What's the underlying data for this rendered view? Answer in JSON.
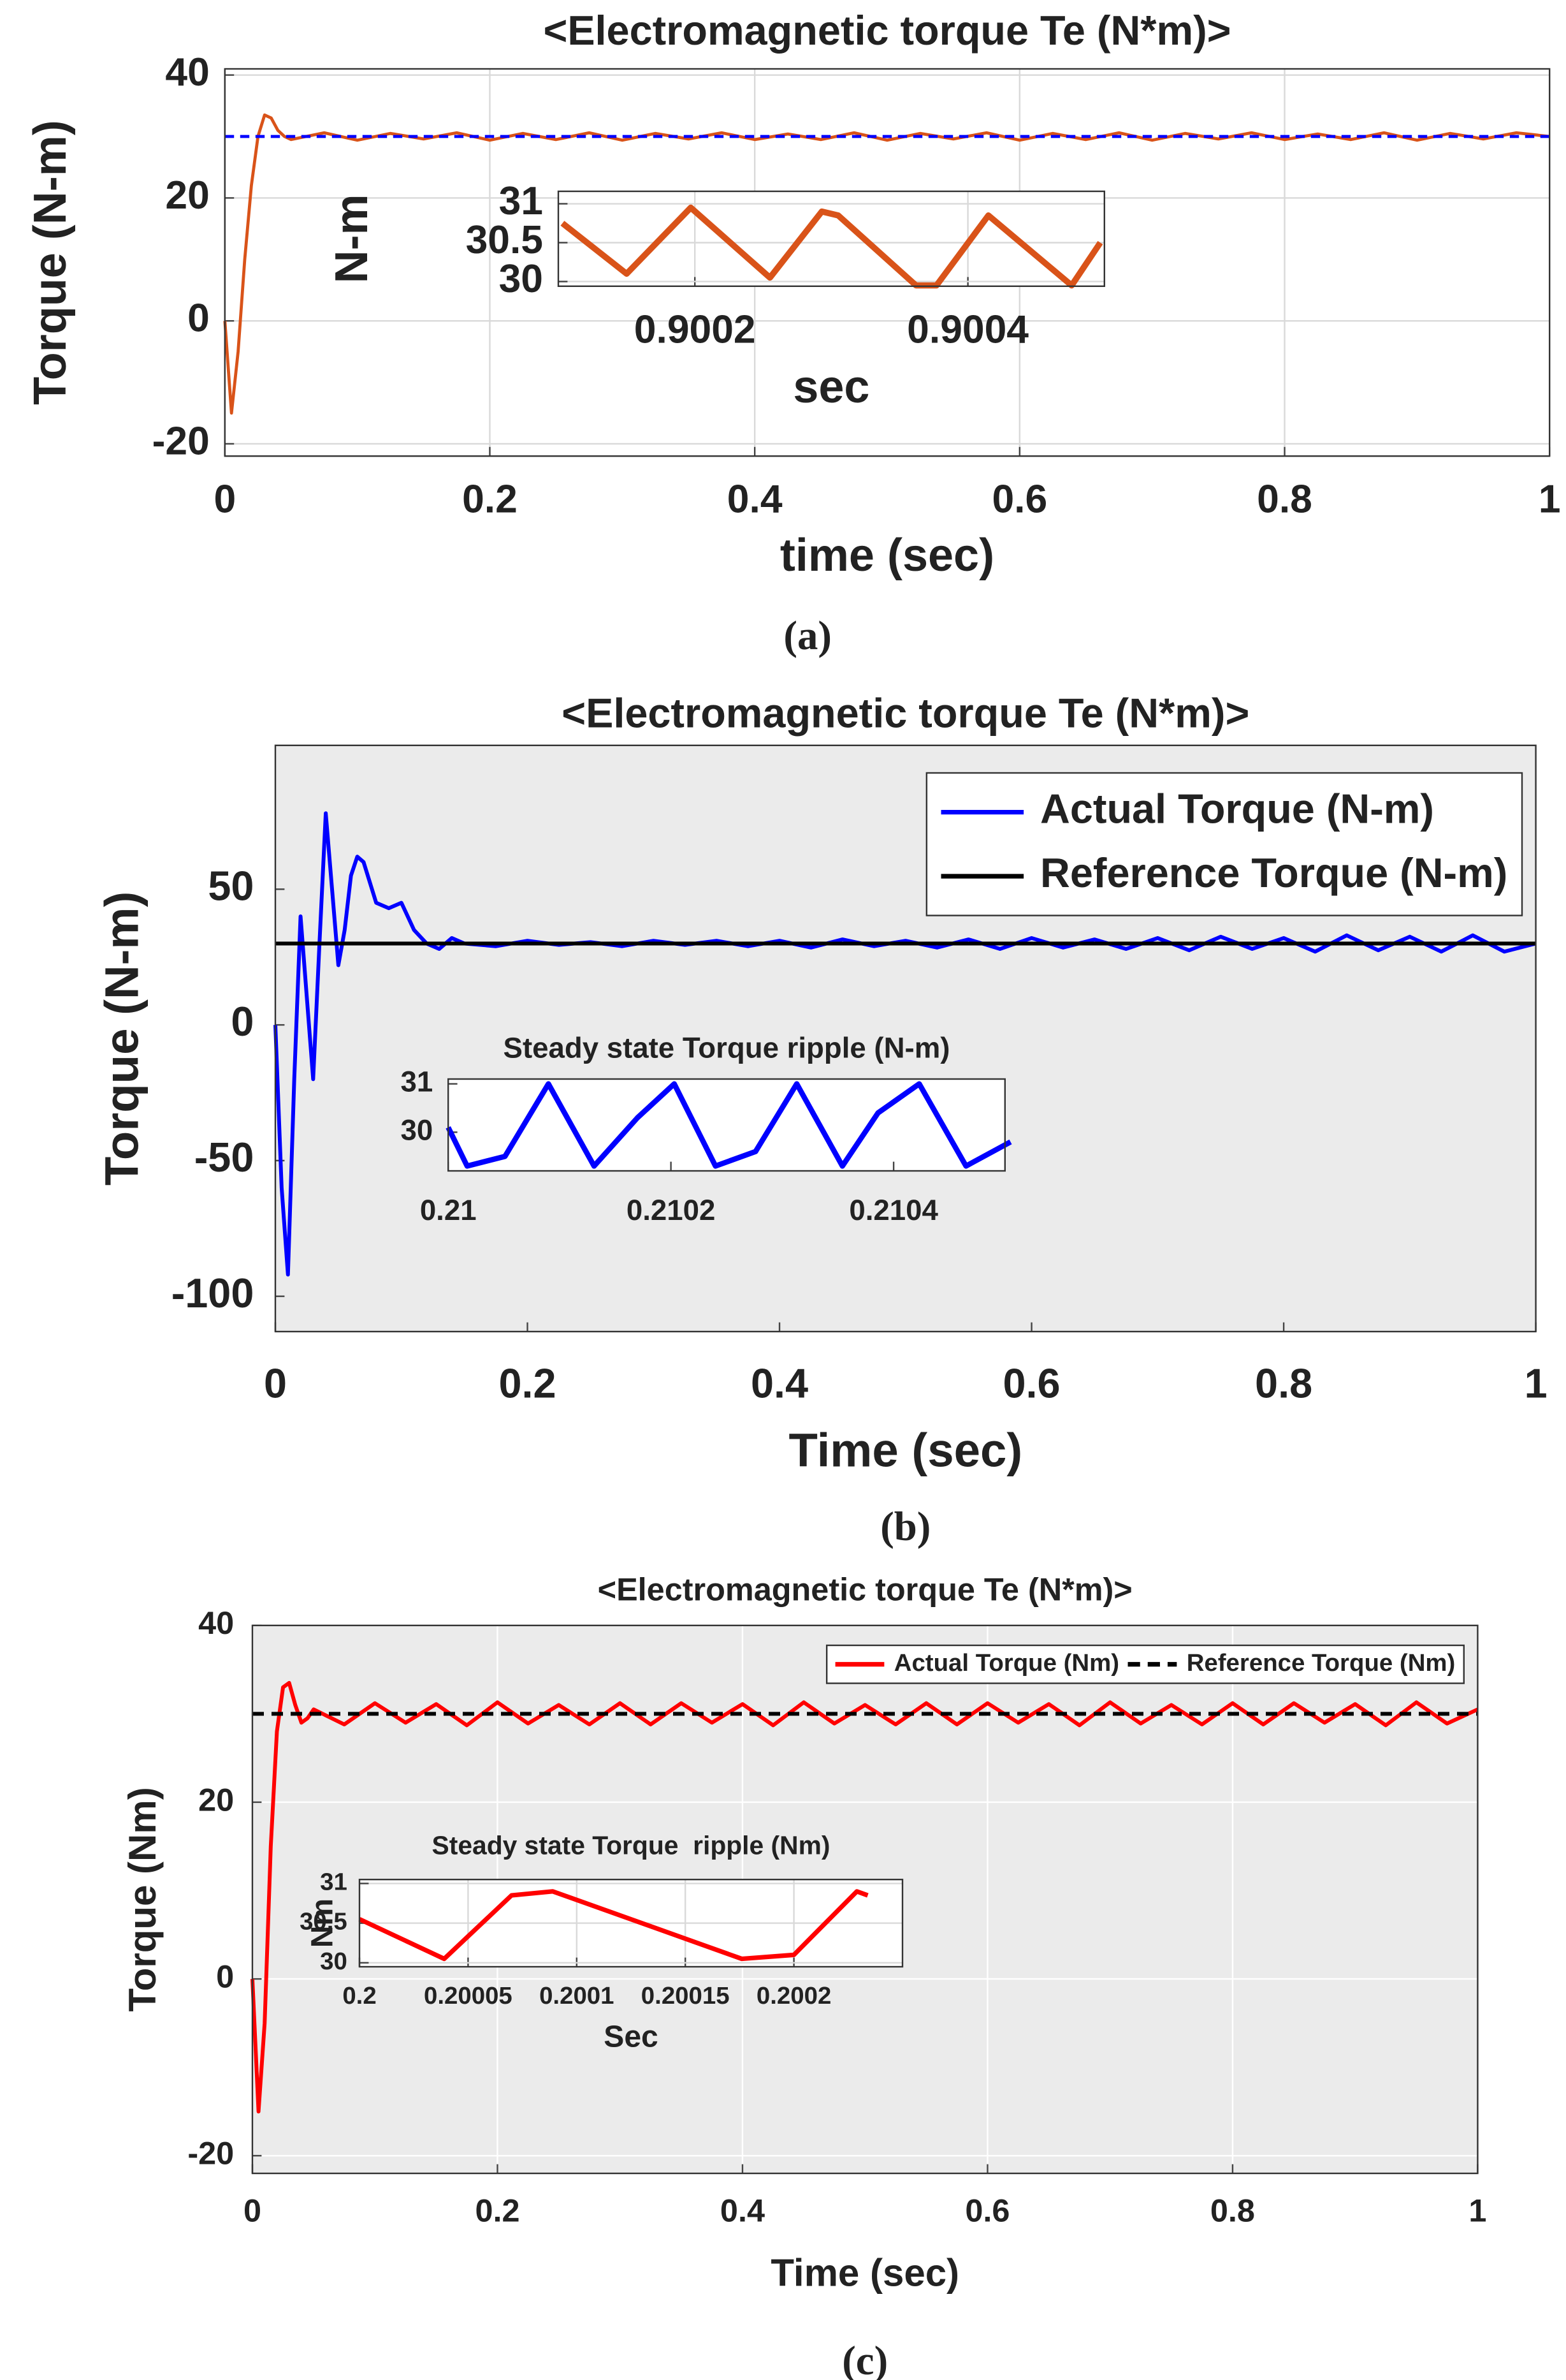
{
  "chart_data": [
    {
      "type": "line",
      "title": "<Electromagnetic torque Te (N*m)>",
      "xlabel": "time (sec)",
      "ylabel": "Torque (N-m)",
      "caption": "(a)",
      "xlim": [
        0,
        1
      ],
      "ylim": [
        -22,
        41
      ],
      "xticks": [
        0,
        0.2,
        0.4,
        0.6,
        0.8,
        1
      ],
      "yticks": [
        -20,
        0,
        20,
        40
      ],
      "grid": true,
      "background": "#ffffff",
      "series": [
        {
          "color": "#d95319",
          "dash": false,
          "x": [
            0,
            0.005,
            0.01,
            0.015,
            0.02,
            0.025,
            0.03,
            0.035,
            0.04,
            0.045,
            0.05,
            0.075,
            0.1,
            0.125,
            0.15,
            0.175,
            0.2,
            0.225,
            0.25,
            0.275,
            0.3,
            0.325,
            0.35,
            0.375,
            0.4,
            0.425,
            0.45,
            0.475,
            0.5,
            0.525,
            0.55,
            0.575,
            0.6,
            0.625,
            0.65,
            0.675,
            0.7,
            0.725,
            0.75,
            0.775,
            0.8,
            0.825,
            0.85,
            0.875,
            0.9,
            0.925,
            0.95,
            0.975,
            1
          ],
          "values": [
            0,
            -15,
            -5,
            10,
            22,
            30,
            33.5,
            33,
            31,
            30,
            29.5,
            30.6,
            29.4,
            30.5,
            29.6,
            30.6,
            29.4,
            30.5,
            29.5,
            30.6,
            29.4,
            30.5,
            29.6,
            30.6,
            29.5,
            30.4,
            29.5,
            30.6,
            29.4,
            30.5,
            29.6,
            30.6,
            29.4,
            30.5,
            29.5,
            30.6,
            29.4,
            30.5,
            29.6,
            30.6,
            29.5,
            30.4,
            29.5,
            30.6,
            29.4,
            30.5,
            29.6,
            30.6,
            30
          ]
        },
        {
          "color": "#0000ff",
          "dash": true,
          "x": [
            0,
            1
          ],
          "values": [
            30,
            30
          ]
        }
      ]
    },
    {
      "type": "line",
      "xlabel": "sec",
      "ylabel": "N-m",
      "xlim": [
        0.9001,
        0.9005
      ],
      "ylim": [
        29.94,
        31.16
      ],
      "xticks": [
        0.9002,
        0.9004
      ],
      "yticks": [
        30,
        30.5,
        31
      ],
      "grid": true,
      "background": "#ffffff",
      "series": [
        {
          "color": "#d95319",
          "dash": false,
          "x": [
            0.900103,
            0.90015,
            0.900197,
            0.900255,
            0.900293,
            0.900305,
            0.900362,
            0.900377,
            0.900415,
            0.900476,
            0.900497
          ],
          "values": [
            30.75,
            30.1,
            30.95,
            30.05,
            30.9,
            30.85,
            29.95,
            29.95,
            30.85,
            29.95,
            30.5
          ]
        }
      ]
    },
    {
      "type": "line",
      "title": "<Electromagnetic torque Te (N*m)>",
      "xlabel": "Time (sec)",
      "ylabel": "Torque (N-m)",
      "caption": "(b)",
      "xlim": [
        0,
        1
      ],
      "ylim": [
        -113,
        103
      ],
      "xticks": [
        0,
        0.2,
        0.4,
        0.6,
        0.8,
        1
      ],
      "yticks": [
        -100,
        -50,
        0,
        50
      ],
      "grid": false,
      "background": "#ebebeb",
      "legend": "top-right",
      "legend_orientation": "vertical",
      "legend_text_color": "#b5500f",
      "series": [
        {
          "name": "Actual Torque (N-m)",
          "color": "#0000ff",
          "dash": false,
          "x": [
            0,
            0.005,
            0.01,
            0.015,
            0.02,
            0.025,
            0.03,
            0.035,
            0.04,
            0.045,
            0.05,
            0.055,
            0.06,
            0.065,
            0.07,
            0.08,
            0.09,
            0.1,
            0.11,
            0.12,
            0.13,
            0.14,
            0.15,
            0.175,
            0.2,
            0.225,
            0.25,
            0.275,
            0.3,
            0.325,
            0.35,
            0.375,
            0.4,
            0.425,
            0.45,
            0.475,
            0.5,
            0.525,
            0.55,
            0.575,
            0.6,
            0.625,
            0.65,
            0.675,
            0.7,
            0.725,
            0.75,
            0.775,
            0.8,
            0.825,
            0.85,
            0.875,
            0.9,
            0.925,
            0.95,
            0.975,
            1
          ],
          "values": [
            0,
            -60,
            -92,
            -20,
            40,
            10,
            -20,
            30,
            78,
            50,
            22,
            35,
            55,
            62,
            60,
            45,
            43,
            45,
            35,
            30,
            28,
            32,
            30,
            29,
            31,
            29.5,
            30.5,
            29,
            31,
            29.5,
            31,
            29,
            31,
            28.5,
            31.5,
            29,
            31,
            28.5,
            31.5,
            28,
            32,
            28.5,
            31.5,
            28,
            32,
            27.5,
            32.5,
            28,
            32,
            27,
            33,
            27.5,
            32.5,
            27,
            33,
            27,
            30
          ]
        },
        {
          "name": "Reference Torque (N-m)",
          "color": "#000000",
          "dash": false,
          "x": [
            0,
            1
          ],
          "values": [
            30,
            30
          ]
        }
      ]
    },
    {
      "type": "line",
      "title": "Steady state Torque ripple (N-m)",
      "xlim": [
        0.21,
        0.2105
      ],
      "ylim": [
        29.2,
        31.1
      ],
      "xticks": [
        0.21,
        0.2102,
        0.2104
      ],
      "yticks": [
        30,
        31
      ],
      "grid": false,
      "background": "#ffffff",
      "series": [
        {
          "color": "#0000ff",
          "dash": false,
          "x": [
            0.21,
            0.210017,
            0.210051,
            0.21009,
            0.210131,
            0.21017,
            0.210203,
            0.21024,
            0.210276,
            0.210313,
            0.210354,
            0.210386,
            0.210423,
            0.210465,
            0.210505
          ],
          "values": [
            30.1,
            29.3,
            29.5,
            31,
            29.3,
            30.3,
            31,
            29.3,
            29.6,
            31,
            29.3,
            30.4,
            31,
            29.3,
            29.8
          ]
        }
      ]
    },
    {
      "type": "line",
      "title": "<Electromagnetic torque Te (N*m)>",
      "xlabel": "Time (sec)",
      "ylabel": "Torque (Nm)",
      "caption": "(c)",
      "xlim": [
        0,
        1
      ],
      "ylim": [
        -22,
        40
      ],
      "xticks": [
        0,
        0.2,
        0.4,
        0.6,
        0.8,
        1
      ],
      "yticks": [
        -20,
        0,
        20,
        40
      ],
      "grid": true,
      "background": "#ebebeb",
      "legend": "top-right",
      "legend_orientation": "horizontal",
      "legend_text_color": "#000000",
      "series": [
        {
          "name": "Actual Torque (Nm)",
          "color": "#ff0000",
          "dash": false,
          "x": [
            0,
            0.005,
            0.01,
            0.015,
            0.02,
            0.025,
            0.03,
            0.035,
            0.04,
            0.045,
            0.05,
            0.075,
            0.1,
            0.125,
            0.15,
            0.175,
            0.2,
            0.225,
            0.25,
            0.275,
            0.3,
            0.325,
            0.35,
            0.375,
            0.4,
            0.425,
            0.45,
            0.475,
            0.5,
            0.525,
            0.55,
            0.575,
            0.6,
            0.625,
            0.65,
            0.675,
            0.7,
            0.725,
            0.75,
            0.775,
            0.8,
            0.825,
            0.85,
            0.875,
            0.9,
            0.925,
            0.95,
            0.975,
            1
          ],
          "values": [
            0,
            -15,
            -5,
            15,
            28,
            33,
            33.5,
            31,
            29,
            29.5,
            30.5,
            28.8,
            31.2,
            29,
            31.1,
            28.7,
            31.3,
            28.9,
            31,
            28.8,
            31.2,
            28.8,
            31.2,
            29,
            31.1,
            28.7,
            31.3,
            28.9,
            31,
            28.8,
            31.2,
            28.8,
            31.2,
            29,
            31.1,
            28.7,
            31.3,
            28.9,
            31,
            28.8,
            31.2,
            28.8,
            31.2,
            29,
            31.1,
            28.7,
            31.3,
            28.9,
            30.5
          ]
        },
        {
          "name": "Reference Torque (Nm)",
          "color": "#000000",
          "dash": true,
          "x": [
            0,
            1
          ],
          "values": [
            30,
            30
          ]
        }
      ]
    },
    {
      "type": "line",
      "title": "Steady state Torque  ripple (Nm)",
      "xlabel": "Sec",
      "ylabel": "Nm",
      "xlim": [
        0.2,
        0.20025
      ],
      "ylim": [
        29.95,
        31.05
      ],
      "xticks": [
        0.2,
        0.20005,
        0.2001,
        0.20015,
        0.2002
      ],
      "yticks": [
        30,
        30.5,
        31
      ],
      "grid": true,
      "background": "#ffffff",
      "series": [
        {
          "color": "#ff0000",
          "dash": false,
          "x": [
            0.2,
            0.200039,
            0.20007,
            0.200089,
            0.200176,
            0.2002,
            0.200229,
            0.200234
          ],
          "values": [
            30.55,
            30.05,
            30.85,
            30.9,
            30.05,
            30.1,
            30.9,
            30.85
          ]
        }
      ]
    }
  ]
}
